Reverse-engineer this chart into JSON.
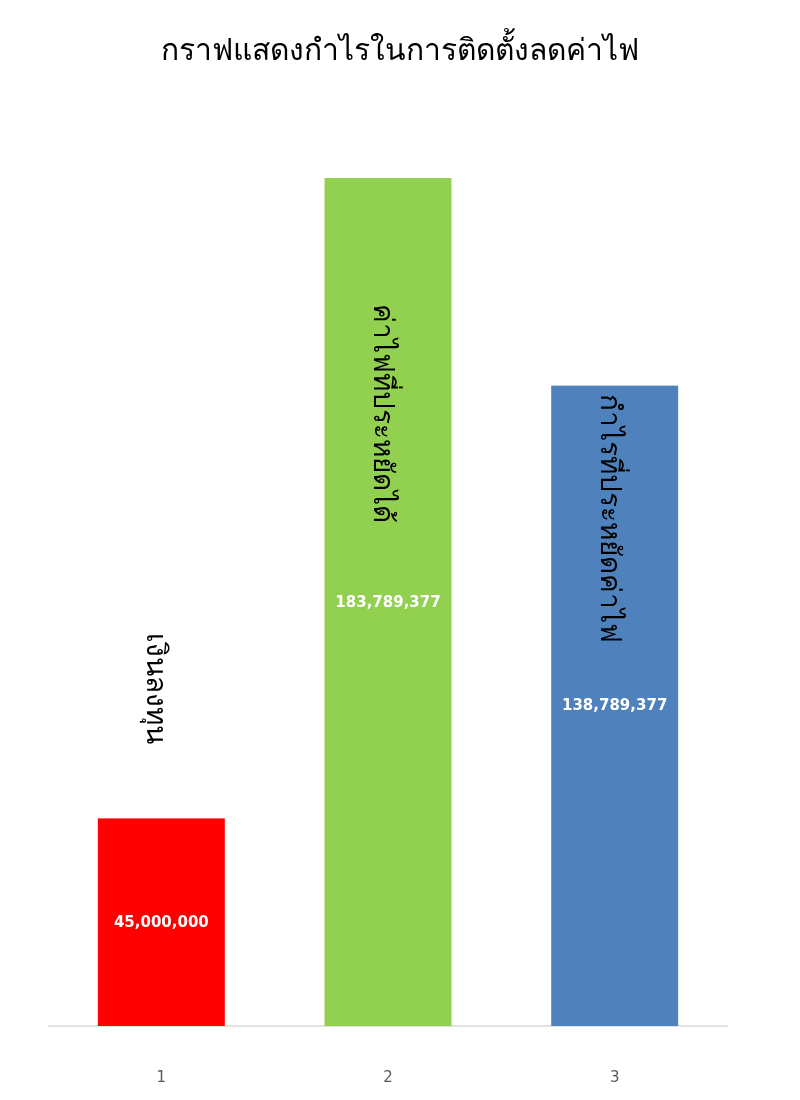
{
  "chart_data": {
    "type": "bar",
    "title": "กราฟแสดงกำไรในการติดตั้งลดค่าไฟ",
    "categories": [
      "1",
      "2",
      "3"
    ],
    "values": [
      45000000,
      183789377,
      138789377
    ],
    "colors": [
      "#ff0000",
      "#92d050",
      "#4f81bd"
    ],
    "data_labels": true,
    "value_labels": [
      "45,000,000",
      "183,789,377",
      "138,789,377"
    ],
    "annotations": [
      "เงินลงทุน",
      "ค่าไฟที่ประหยัดได้",
      "กำไรที่ประหยัดค่าไฟ"
    ]
  }
}
